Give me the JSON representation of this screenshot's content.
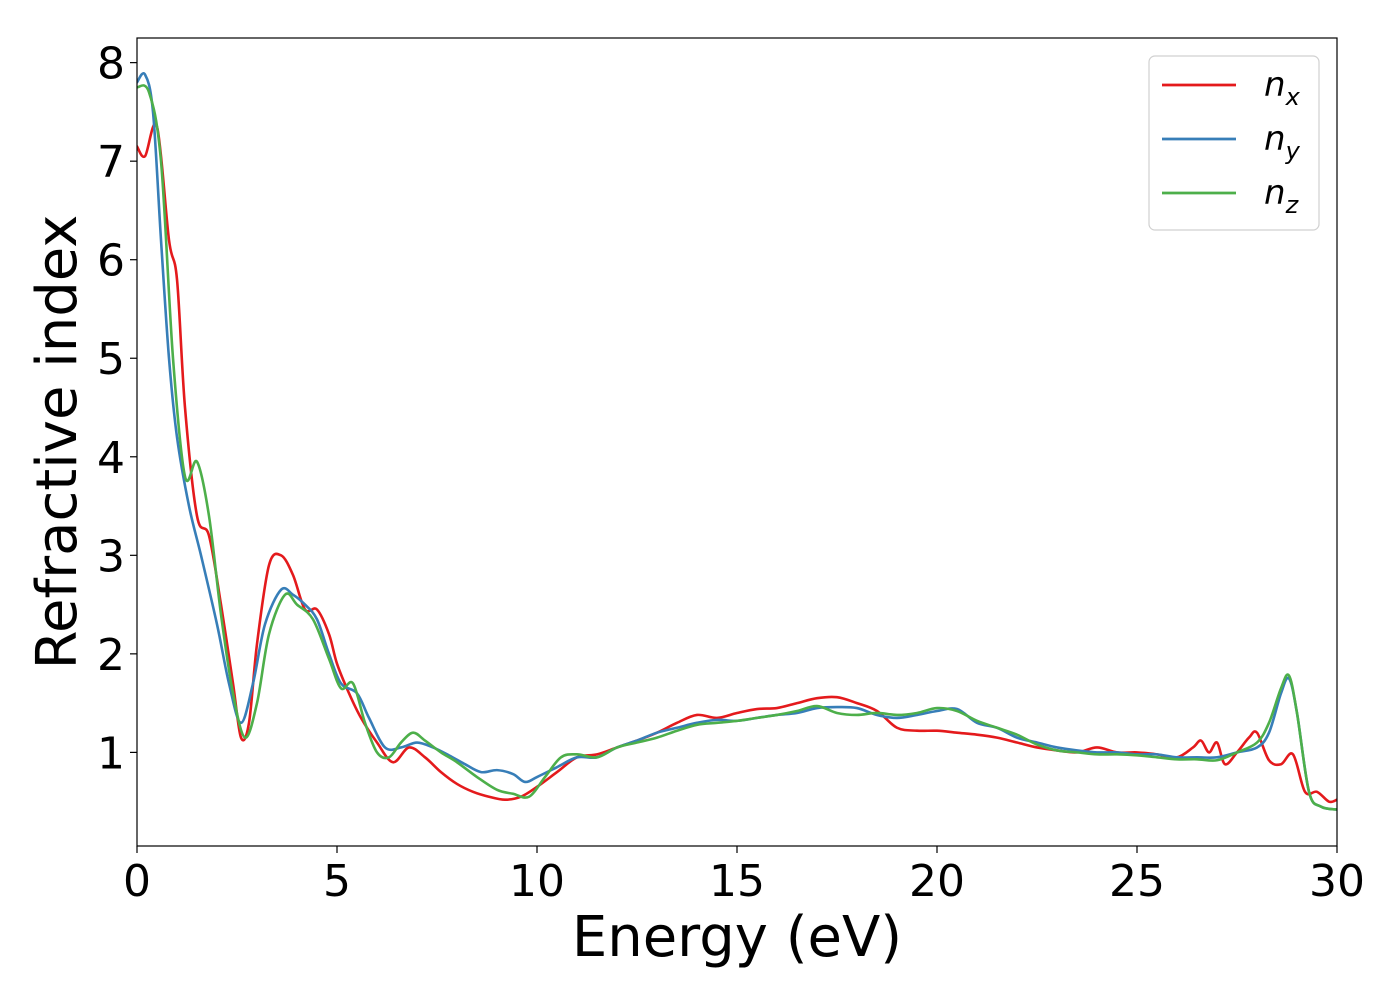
{
  "chart_data": {
    "type": "line",
    "xlabel": "Energy (eV)",
    "ylabel": "Refractive index",
    "xlim": [
      0,
      30
    ],
    "ylim": [
      0.05,
      8.25
    ],
    "xticks": [
      0,
      5,
      10,
      15,
      20,
      25,
      30
    ],
    "yticks": [
      1,
      2,
      3,
      4,
      5,
      6,
      7,
      8
    ],
    "grid": false,
    "legend_position": "top-right",
    "series": [
      {
        "name": "n_x",
        "label_base": "n",
        "label_sub": "x",
        "color": "#e41a1c",
        "points": [
          [
            0,
            7.15
          ],
          [
            0.2,
            7.05
          ],
          [
            0.5,
            7.35
          ],
          [
            0.8,
            6.2
          ],
          [
            1.0,
            5.8
          ],
          [
            1.2,
            4.5
          ],
          [
            1.5,
            3.4
          ],
          [
            1.8,
            3.2
          ],
          [
            2.1,
            2.5
          ],
          [
            2.4,
            1.7
          ],
          [
            2.6,
            1.15
          ],
          [
            2.8,
            1.3
          ],
          [
            3.0,
            2.1
          ],
          [
            3.3,
            2.9
          ],
          [
            3.6,
            3.0
          ],
          [
            3.9,
            2.8
          ],
          [
            4.2,
            2.45
          ],
          [
            4.5,
            2.45
          ],
          [
            4.8,
            2.2
          ],
          [
            5.0,
            1.9
          ],
          [
            5.3,
            1.6
          ],
          [
            5.6,
            1.35
          ],
          [
            6.0,
            1.1
          ],
          [
            6.4,
            0.9
          ],
          [
            6.8,
            1.05
          ],
          [
            7.2,
            0.95
          ],
          [
            7.6,
            0.8
          ],
          [
            8.0,
            0.68
          ],
          [
            8.4,
            0.6
          ],
          [
            8.8,
            0.55
          ],
          [
            9.2,
            0.52
          ],
          [
            9.6,
            0.55
          ],
          [
            10.0,
            0.65
          ],
          [
            10.5,
            0.8
          ],
          [
            11.0,
            0.95
          ],
          [
            11.5,
            0.98
          ],
          [
            12.0,
            1.05
          ],
          [
            12.5,
            1.12
          ],
          [
            13.0,
            1.2
          ],
          [
            13.5,
            1.3
          ],
          [
            14.0,
            1.38
          ],
          [
            14.5,
            1.35
          ],
          [
            15.0,
            1.4
          ],
          [
            15.5,
            1.44
          ],
          [
            16.0,
            1.45
          ],
          [
            16.5,
            1.5
          ],
          [
            17.0,
            1.55
          ],
          [
            17.5,
            1.56
          ],
          [
            18.0,
            1.5
          ],
          [
            18.5,
            1.42
          ],
          [
            19.0,
            1.25
          ],
          [
            19.5,
            1.22
          ],
          [
            20.0,
            1.22
          ],
          [
            20.5,
            1.2
          ],
          [
            21.0,
            1.18
          ],
          [
            21.5,
            1.15
          ],
          [
            22.0,
            1.1
          ],
          [
            22.5,
            1.05
          ],
          [
            23.0,
            1.02
          ],
          [
            23.5,
            1.0
          ],
          [
            24.0,
            1.05
          ],
          [
            24.5,
            1.0
          ],
          [
            25.0,
            1.0
          ],
          [
            25.5,
            0.98
          ],
          [
            26.0,
            0.95
          ],
          [
            26.4,
            1.05
          ],
          [
            26.6,
            1.12
          ],
          [
            26.8,
            1.0
          ],
          [
            27.0,
            1.1
          ],
          [
            27.2,
            0.88
          ],
          [
            27.5,
            1.0
          ],
          [
            27.8,
            1.15
          ],
          [
            28.0,
            1.2
          ],
          [
            28.3,
            0.92
          ],
          [
            28.6,
            0.88
          ],
          [
            28.9,
            0.98
          ],
          [
            29.2,
            0.6
          ],
          [
            29.5,
            0.6
          ],
          [
            29.8,
            0.5
          ],
          [
            30.0,
            0.52
          ]
        ]
      },
      {
        "name": "n_y",
        "label_base": "n",
        "label_sub": "y",
        "color": "#377eb8",
        "points": [
          [
            0,
            7.8
          ],
          [
            0.2,
            7.88
          ],
          [
            0.4,
            7.5
          ],
          [
            0.6,
            6.2
          ],
          [
            0.8,
            5.0
          ],
          [
            1.0,
            4.2
          ],
          [
            1.3,
            3.5
          ],
          [
            1.6,
            3.0
          ],
          [
            2.0,
            2.3
          ],
          [
            2.3,
            1.7
          ],
          [
            2.6,
            1.3
          ],
          [
            2.9,
            1.7
          ],
          [
            3.2,
            2.3
          ],
          [
            3.6,
            2.65
          ],
          [
            3.9,
            2.6
          ],
          [
            4.2,
            2.5
          ],
          [
            4.5,
            2.35
          ],
          [
            4.8,
            2.0
          ],
          [
            5.1,
            1.7
          ],
          [
            5.5,
            1.6
          ],
          [
            5.8,
            1.35
          ],
          [
            6.2,
            1.05
          ],
          [
            6.6,
            1.05
          ],
          [
            7.0,
            1.1
          ],
          [
            7.4,
            1.05
          ],
          [
            7.8,
            0.97
          ],
          [
            8.2,
            0.88
          ],
          [
            8.6,
            0.8
          ],
          [
            9.0,
            0.82
          ],
          [
            9.4,
            0.78
          ],
          [
            9.7,
            0.7
          ],
          [
            10.0,
            0.75
          ],
          [
            10.5,
            0.85
          ],
          [
            11.0,
            0.95
          ],
          [
            11.5,
            0.95
          ],
          [
            12.0,
            1.05
          ],
          [
            12.5,
            1.12
          ],
          [
            13.0,
            1.2
          ],
          [
            13.5,
            1.25
          ],
          [
            14.0,
            1.3
          ],
          [
            14.5,
            1.33
          ],
          [
            15.0,
            1.32
          ],
          [
            15.5,
            1.35
          ],
          [
            16.0,
            1.38
          ],
          [
            16.5,
            1.4
          ],
          [
            17.0,
            1.45
          ],
          [
            17.5,
            1.46
          ],
          [
            18.0,
            1.45
          ],
          [
            18.5,
            1.38
          ],
          [
            19.0,
            1.35
          ],
          [
            19.5,
            1.38
          ],
          [
            20.0,
            1.42
          ],
          [
            20.5,
            1.44
          ],
          [
            21.0,
            1.3
          ],
          [
            21.5,
            1.25
          ],
          [
            22.0,
            1.15
          ],
          [
            22.5,
            1.1
          ],
          [
            23.0,
            1.05
          ],
          [
            23.5,
            1.02
          ],
          [
            24.0,
            1.0
          ],
          [
            24.5,
            1.0
          ],
          [
            25.0,
            0.98
          ],
          [
            25.5,
            0.98
          ],
          [
            26.0,
            0.95
          ],
          [
            26.5,
            0.95
          ],
          [
            27.0,
            0.95
          ],
          [
            27.5,
            1.0
          ],
          [
            28.0,
            1.05
          ],
          [
            28.3,
            1.2
          ],
          [
            28.6,
            1.6
          ],
          [
            28.8,
            1.75
          ],
          [
            29.0,
            1.4
          ],
          [
            29.3,
            0.6
          ],
          [
            29.6,
            0.45
          ],
          [
            30.0,
            0.42
          ]
        ]
      },
      {
        "name": "n_z",
        "label_base": "n",
        "label_sub": "z",
        "color": "#4daf4a",
        "points": [
          [
            0,
            7.75
          ],
          [
            0.3,
            7.7
          ],
          [
            0.6,
            7.0
          ],
          [
            0.9,
            5.0
          ],
          [
            1.2,
            3.8
          ],
          [
            1.5,
            3.95
          ],
          [
            1.8,
            3.4
          ],
          [
            2.1,
            2.4
          ],
          [
            2.4,
            1.6
          ],
          [
            2.7,
            1.15
          ],
          [
            3.0,
            1.5
          ],
          [
            3.3,
            2.2
          ],
          [
            3.7,
            2.6
          ],
          [
            4.0,
            2.5
          ],
          [
            4.4,
            2.35
          ],
          [
            4.8,
            1.95
          ],
          [
            5.1,
            1.65
          ],
          [
            5.4,
            1.7
          ],
          [
            5.7,
            1.3
          ],
          [
            6.0,
            1.0
          ],
          [
            6.3,
            0.95
          ],
          [
            6.6,
            1.1
          ],
          [
            6.9,
            1.2
          ],
          [
            7.2,
            1.12
          ],
          [
            7.6,
            1.0
          ],
          [
            8.0,
            0.9
          ],
          [
            8.5,
            0.75
          ],
          [
            9.0,
            0.62
          ],
          [
            9.4,
            0.58
          ],
          [
            9.8,
            0.55
          ],
          [
            10.2,
            0.75
          ],
          [
            10.6,
            0.95
          ],
          [
            11.0,
            0.98
          ],
          [
            11.5,
            0.95
          ],
          [
            12.0,
            1.05
          ],
          [
            12.5,
            1.1
          ],
          [
            13.0,
            1.15
          ],
          [
            13.5,
            1.22
          ],
          [
            14.0,
            1.28
          ],
          [
            14.5,
            1.3
          ],
          [
            15.0,
            1.32
          ],
          [
            15.5,
            1.35
          ],
          [
            16.0,
            1.38
          ],
          [
            16.5,
            1.42
          ],
          [
            17.0,
            1.47
          ],
          [
            17.5,
            1.4
          ],
          [
            18.0,
            1.38
          ],
          [
            18.5,
            1.4
          ],
          [
            19.0,
            1.38
          ],
          [
            19.5,
            1.4
          ],
          [
            20.0,
            1.45
          ],
          [
            20.5,
            1.42
          ],
          [
            21.0,
            1.32
          ],
          [
            21.5,
            1.25
          ],
          [
            22.0,
            1.18
          ],
          [
            22.5,
            1.08
          ],
          [
            23.0,
            1.02
          ],
          [
            23.5,
            1.0
          ],
          [
            24.0,
            0.98
          ],
          [
            24.5,
            0.98
          ],
          [
            25.0,
            0.97
          ],
          [
            25.5,
            0.95
          ],
          [
            26.0,
            0.93
          ],
          [
            26.5,
            0.93
          ],
          [
            27.0,
            0.92
          ],
          [
            27.5,
            1.0
          ],
          [
            28.0,
            1.1
          ],
          [
            28.3,
            1.3
          ],
          [
            28.6,
            1.65
          ],
          [
            28.8,
            1.78
          ],
          [
            29.0,
            1.4
          ],
          [
            29.3,
            0.6
          ],
          [
            29.6,
            0.45
          ],
          [
            30.0,
            0.42
          ]
        ]
      }
    ]
  }
}
